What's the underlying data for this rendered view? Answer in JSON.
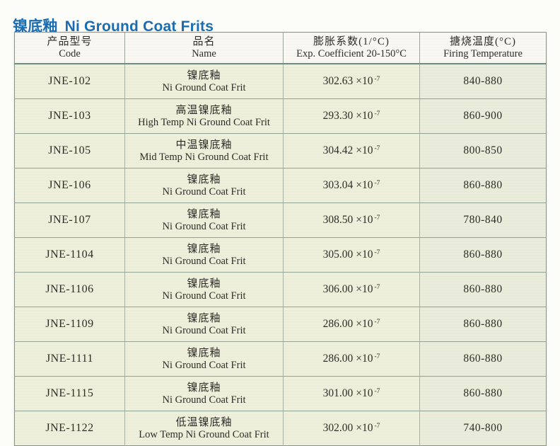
{
  "page": {
    "title_zh": "镍底釉",
    "title_en": "Ni Ground Coat Frits",
    "title_color": "#1a6db3"
  },
  "colors": {
    "title_blue": "#1a6db3",
    "header_bg": "#f9f8f2",
    "body_cell_bg": "#edefda",
    "firing_col_bg": "#e9ecd9",
    "grid_line": "#93a396",
    "header_rule": "#6e8d82"
  },
  "table": {
    "headers": {
      "code": {
        "zh": "产品型号",
        "en": "Code"
      },
      "name": {
        "zh": "品名",
        "en": "Name"
      },
      "coeff": {
        "zh": "膨胀系数(1/°C)",
        "en": "Exp. Coefficient 20-150°C"
      },
      "firing": {
        "zh": "搪烧温度(°C)",
        "en": "Firing Temperature"
      }
    },
    "coeff_multiplier": "×10",
    "coeff_exponent": "-7",
    "rows": [
      {
        "code": "JNE-102",
        "name_zh": "镍底釉",
        "name_en": "Ni Ground Coat Frit",
        "coeff_base": "302.63",
        "firing": "840-880"
      },
      {
        "code": "JNE-103",
        "name_zh": "高温镍底釉",
        "name_en": "High Temp Ni Ground Coat Frit",
        "coeff_base": "293.30",
        "firing": "860-900"
      },
      {
        "code": "JNE-105",
        "name_zh": "中温镍底釉",
        "name_en": "Mid Temp Ni Ground Coat Frit",
        "coeff_base": "304.42",
        "firing": "800-850"
      },
      {
        "code": "JNE-106",
        "name_zh": "镍底釉",
        "name_en": "Ni Ground Coat Frit",
        "coeff_base": "303.04",
        "firing": "860-880"
      },
      {
        "code": "JNE-107",
        "name_zh": "镍底釉",
        "name_en": "Ni Ground Coat Frit",
        "coeff_base": "308.50",
        "firing": "780-840"
      },
      {
        "code": "JNE-1104",
        "name_zh": "镍底釉",
        "name_en": "Ni Ground Coat Frit",
        "coeff_base": "305.00",
        "firing": "860-880"
      },
      {
        "code": "JNE-1106",
        "name_zh": "镍底釉",
        "name_en": "Ni Ground Coat Frit",
        "coeff_base": "306.00",
        "firing": "860-880"
      },
      {
        "code": "JNE-1109",
        "name_zh": "镍底釉",
        "name_en": "Ni Ground Coat Frit",
        "coeff_base": "286.00",
        "firing": "860-880"
      },
      {
        "code": "JNE-1111",
        "name_zh": "镍底釉",
        "name_en": "Ni Ground Coat Frit",
        "coeff_base": "286.00",
        "firing": "860-880"
      },
      {
        "code": "JNE-1115",
        "name_zh": "镍底釉",
        "name_en": "Ni Ground Coat Frit",
        "coeff_base": "301.00",
        "firing": "860-880"
      },
      {
        "code": "JNE-1122",
        "name_zh": "低温镍底釉",
        "name_en": "Low Temp Ni Ground Coat Frit",
        "coeff_base": "302.00",
        "firing": "740-800"
      }
    ]
  }
}
